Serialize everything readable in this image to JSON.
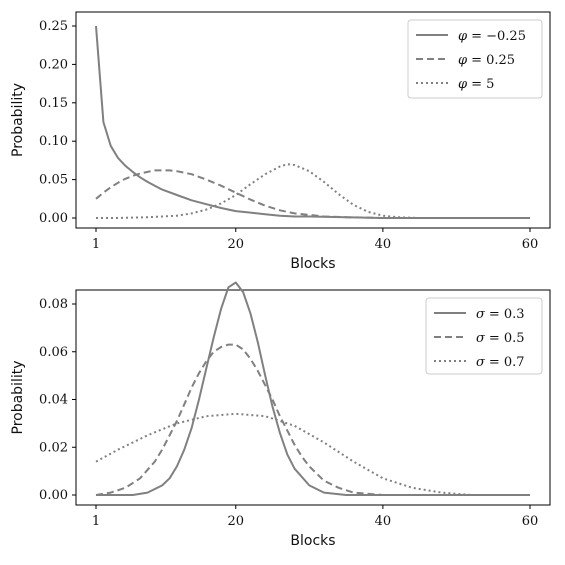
{
  "chart_data": [
    {
      "type": "line",
      "xlabel": "Blocks",
      "ylabel": "Probability",
      "xlim": [
        1,
        60
      ],
      "ylim": [
        0,
        0.25
      ],
      "xticks": [
        "1",
        "20",
        "40",
        "60"
      ],
      "yticks": [
        "0.00",
        "0.05",
        "0.10",
        "0.15",
        "0.20",
        "0.25"
      ],
      "legend_position": "top-right",
      "grid": false,
      "color": "#808080",
      "series": [
        {
          "name": "φ = −0.25",
          "legend_symbol": "φ",
          "legend_value": "= −0.25",
          "style": "solid",
          "x": [
            1,
            2,
            3,
            4,
            5,
            6,
            7,
            8,
            9,
            10,
            12,
            14,
            16,
            18,
            20,
            22,
            24,
            26,
            28,
            30,
            35,
            40,
            45,
            50,
            55,
            60
          ],
          "y": [
            0.25,
            0.125,
            0.094,
            0.078,
            0.068,
            0.06,
            0.053,
            0.047,
            0.042,
            0.037,
            0.03,
            0.023,
            0.018,
            0.013,
            0.009,
            0.007,
            0.005,
            0.003,
            0.002,
            0.002,
            0.001,
            0.0,
            0.0,
            0.0,
            0.0,
            0.0
          ]
        },
        {
          "name": "φ = 0.25",
          "legend_symbol": "φ",
          "legend_value": "= 0.25",
          "style": "dashed",
          "x": [
            1,
            2,
            3,
            4,
            5,
            6,
            7,
            8,
            9,
            10,
            11,
            12,
            14,
            16,
            18,
            20,
            22,
            24,
            26,
            28,
            30,
            32,
            35,
            40,
            45,
            50,
            60
          ],
          "y": [
            0.025,
            0.033,
            0.04,
            0.046,
            0.051,
            0.055,
            0.058,
            0.06,
            0.062,
            0.062,
            0.062,
            0.061,
            0.057,
            0.05,
            0.042,
            0.033,
            0.024,
            0.016,
            0.01,
            0.006,
            0.004,
            0.002,
            0.001,
            0.0,
            0.0,
            0.0,
            0.0
          ]
        },
        {
          "name": "φ = 5",
          "legend_symbol": "φ",
          "legend_value": "= 5",
          "style": "dotted",
          "x": [
            1,
            4,
            8,
            10,
            12,
            14,
            16,
            18,
            20,
            22,
            24,
            26,
            27,
            28,
            30,
            32,
            34,
            36,
            38,
            40,
            42,
            45,
            50,
            60
          ],
          "y": [
            0.0,
            0.0,
            0.001,
            0.002,
            0.003,
            0.006,
            0.011,
            0.019,
            0.03,
            0.044,
            0.057,
            0.067,
            0.07,
            0.069,
            0.061,
            0.047,
            0.031,
            0.017,
            0.008,
            0.003,
            0.001,
            0.0,
            0.0,
            0.0
          ]
        }
      ]
    },
    {
      "type": "line",
      "xlabel": "Blocks",
      "ylabel": "Probability",
      "xlim": [
        1,
        60
      ],
      "ylim": [
        0,
        0.08
      ],
      "xticks": [
        "1",
        "20",
        "40",
        "60"
      ],
      "yticks": [
        "0.00",
        "0.02",
        "0.04",
        "0.06",
        "0.08"
      ],
      "legend_position": "top-right",
      "grid": false,
      "color": "#808080",
      "series": [
        {
          "name": "σ = 0.3",
          "legend_symbol": "σ",
          "legend_value": "= 0.3",
          "style": "solid",
          "x": [
            1,
            4,
            6,
            8,
            10,
            11,
            12,
            13,
            14,
            15,
            16,
            17,
            18,
            19,
            20,
            21,
            22,
            23,
            24,
            25,
            26,
            27,
            28,
            30,
            32,
            35,
            40,
            60
          ],
          "y": [
            0.0,
            0.0,
            0.0,
            0.001,
            0.004,
            0.007,
            0.012,
            0.019,
            0.028,
            0.04,
            0.053,
            0.066,
            0.078,
            0.087,
            0.089,
            0.085,
            0.076,
            0.064,
            0.05,
            0.037,
            0.026,
            0.017,
            0.011,
            0.004,
            0.001,
            0.0,
            0.0,
            0.0
          ]
        },
        {
          "name": "σ = 0.5",
          "legend_symbol": "σ",
          "legend_value": "= 0.5",
          "style": "dashed",
          "x": [
            1,
            3,
            5,
            7,
            9,
            10,
            11,
            12,
            13,
            14,
            15,
            16,
            17,
            18,
            19,
            20,
            21,
            22,
            23,
            24,
            25,
            26,
            27,
            28,
            29,
            30,
            32,
            34,
            36,
            40,
            45,
            60
          ],
          "y": [
            0.0,
            0.001,
            0.003,
            0.007,
            0.014,
            0.019,
            0.025,
            0.031,
            0.038,
            0.045,
            0.051,
            0.056,
            0.06,
            0.062,
            0.063,
            0.063,
            0.061,
            0.057,
            0.052,
            0.046,
            0.04,
            0.033,
            0.027,
            0.021,
            0.016,
            0.012,
            0.006,
            0.003,
            0.001,
            0.0,
            0.0,
            0.0
          ]
        },
        {
          "name": "σ = 0.7",
          "legend_symbol": "σ",
          "legend_value": "= 0.7",
          "style": "dotted",
          "x": [
            1,
            4,
            8,
            12,
            16,
            20,
            24,
            28,
            32,
            36,
            40,
            44,
            48,
            52,
            56,
            60
          ],
          "y": [
            0.014,
            0.019,
            0.025,
            0.03,
            0.033,
            0.034,
            0.033,
            0.029,
            0.022,
            0.014,
            0.007,
            0.003,
            0.001,
            0.0,
            0.0,
            0.0
          ]
        }
      ]
    }
  ]
}
